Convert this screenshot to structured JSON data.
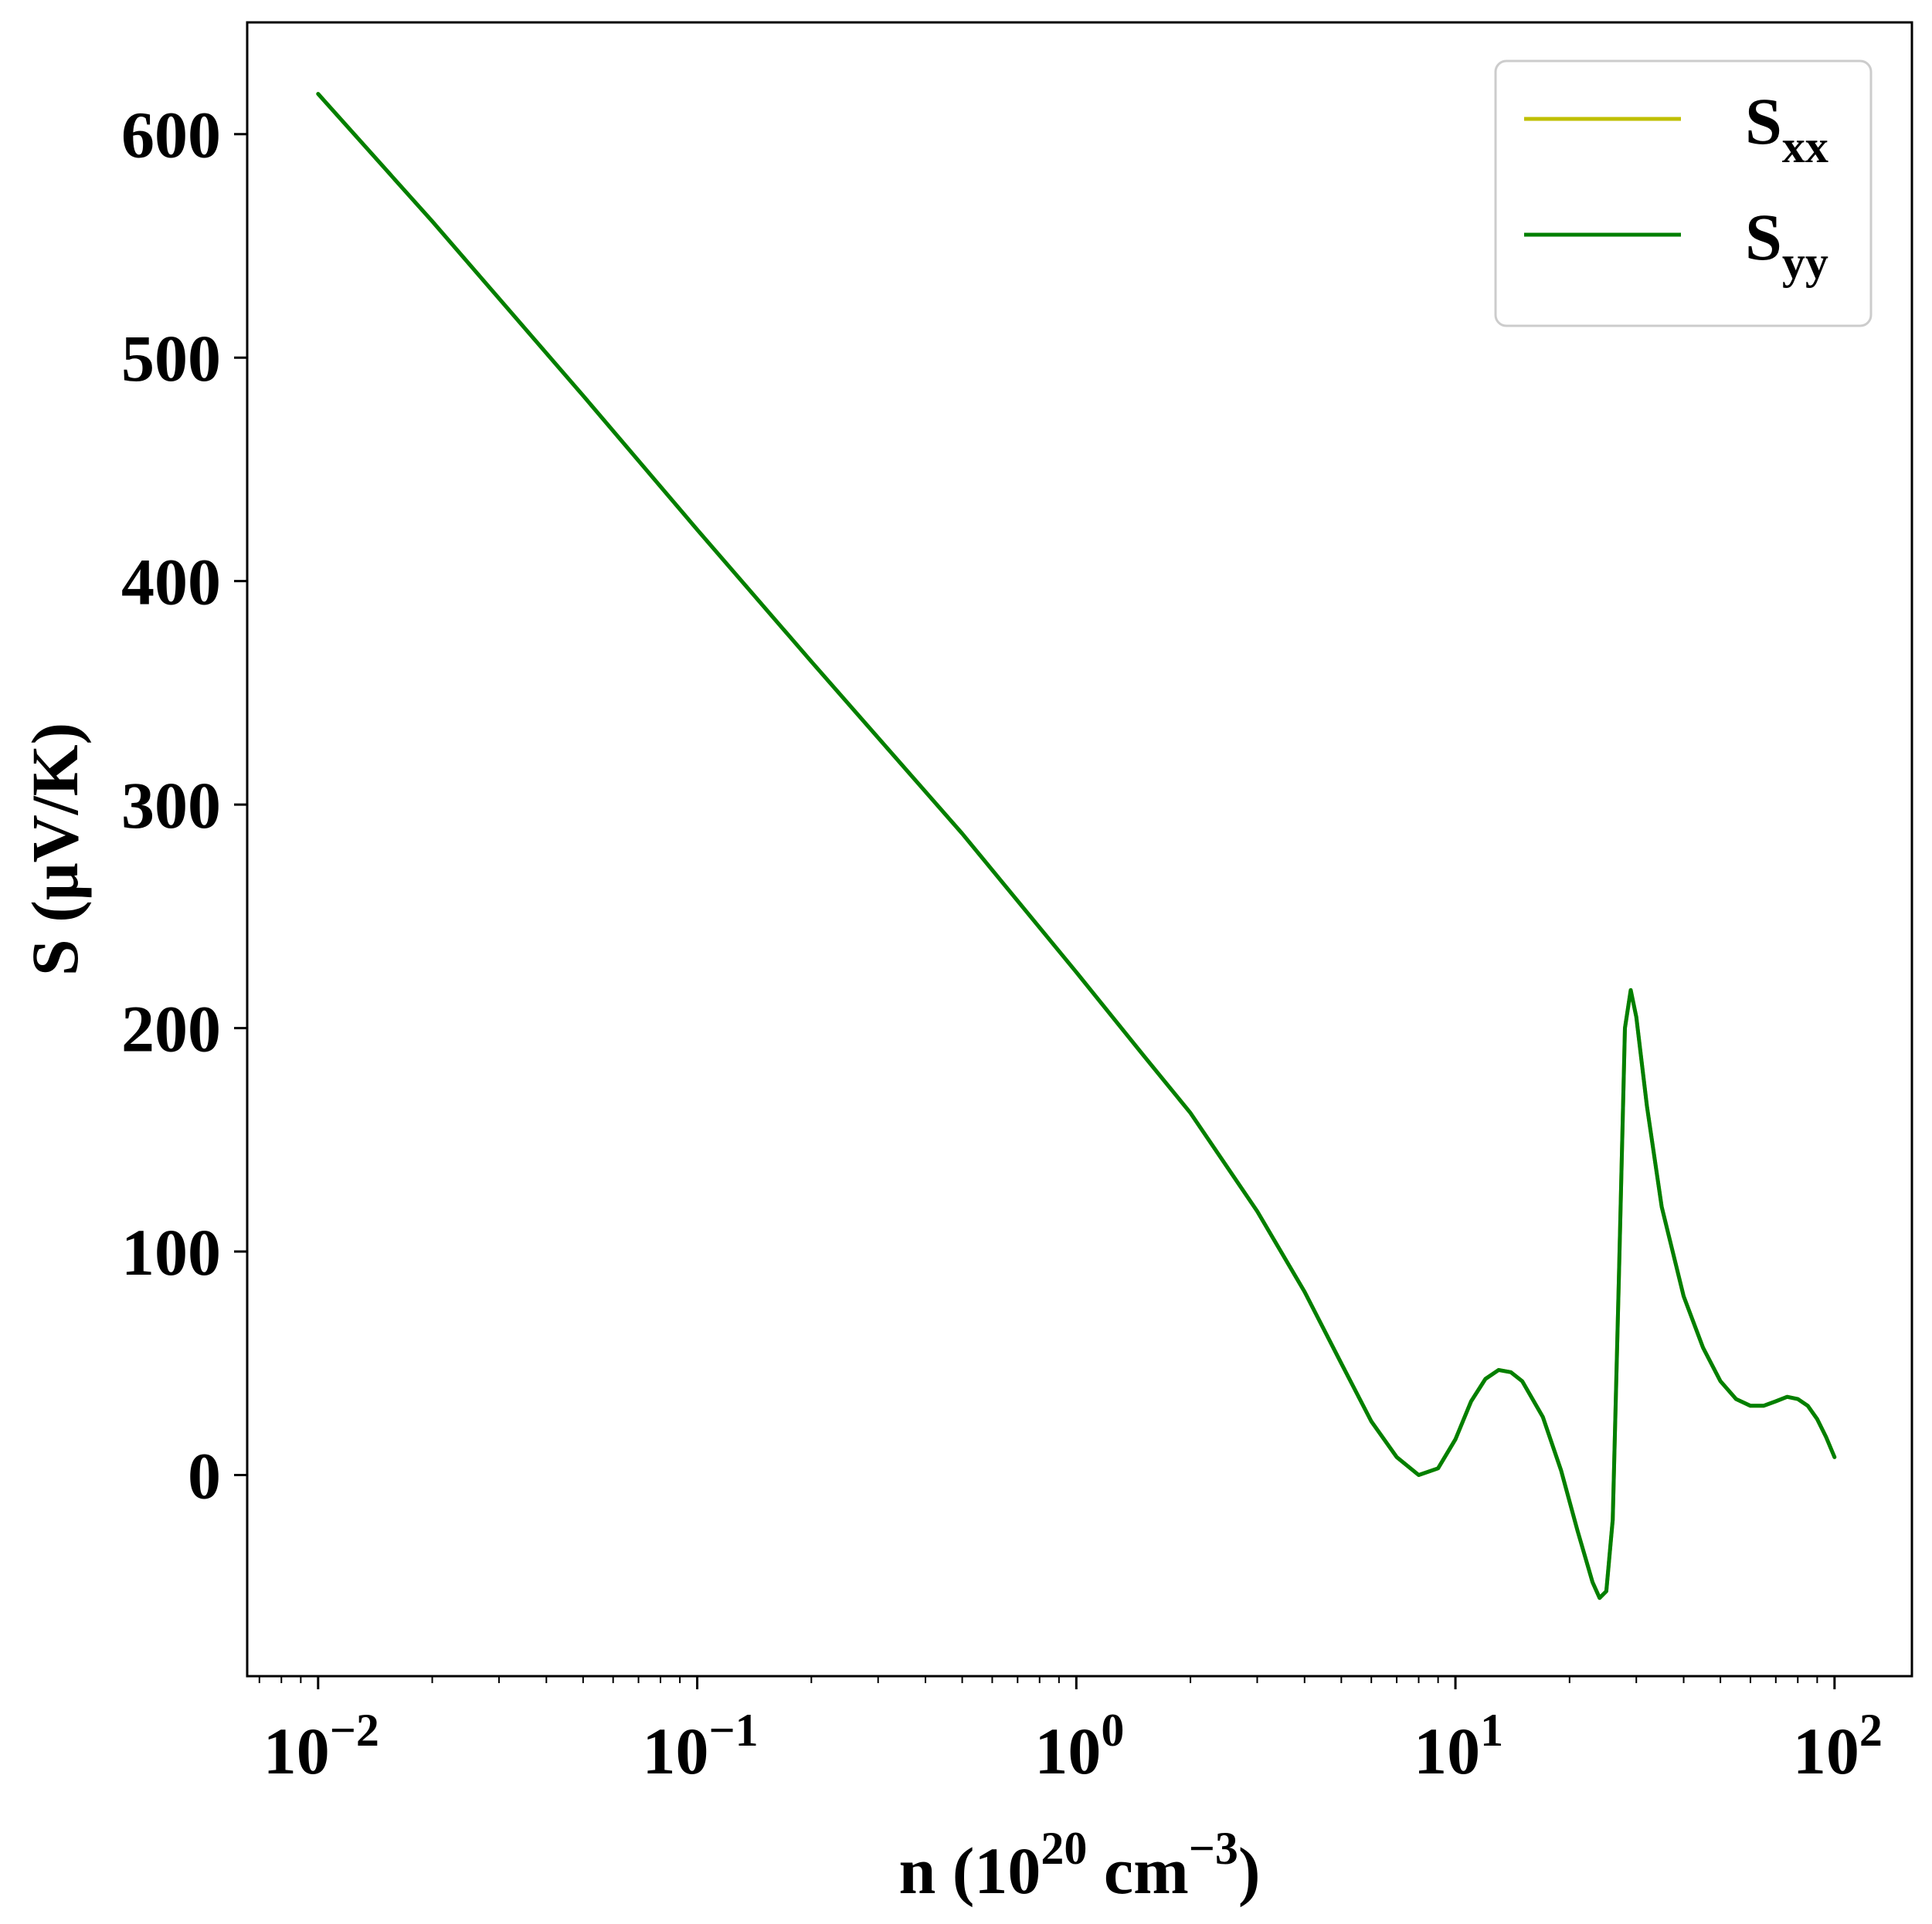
{
  "chart_data": {
    "type": "line",
    "xscale": "log",
    "xlim": [
      0.0065,
      160
    ],
    "ylim": [
      -90,
      650
    ],
    "grid": false,
    "legend_position": "top-right",
    "xlabel": {
      "main": "n (10",
      "sup1": "20",
      "mid": " cm",
      "sup2": "−3",
      "end": ")"
    },
    "ylabel": "S (μV/K)",
    "yticks": [
      0,
      100,
      200,
      300,
      400,
      500,
      600
    ],
    "xticks": [
      {
        "value": 0.01,
        "base": "10",
        "exp": "−2"
      },
      {
        "value": 0.1,
        "base": "10",
        "exp": "−1"
      },
      {
        "value": 1,
        "base": "10",
        "exp": "0"
      },
      {
        "value": 10,
        "base": "10",
        "exp": "1"
      },
      {
        "value": 100,
        "base": "10",
        "exp": "2"
      }
    ],
    "series": [
      {
        "name": "S",
        "name_sub": "xx",
        "color": "#bfbf00",
        "x": [
          0.01,
          0.02,
          0.05,
          0.1,
          0.2,
          0.5,
          1.0,
          1.5,
          2.0,
          3.0,
          4.0,
          5.0,
          6.0,
          7.0,
          8.0,
          9.0,
          10.0,
          11.0,
          12.0,
          13.0,
          14.0,
          15.0,
          17.0,
          19.0,
          21.0,
          23.0,
          24.0,
          25.0,
          26.0,
          27.0,
          28.0,
          29.0,
          30.0,
          32.0,
          35.0,
          40.0,
          45.0,
          50.0,
          55.0,
          60.0,
          65.0,
          70.0,
          75.0,
          80.0,
          85.0,
          90.0,
          95.0,
          100.0
        ],
        "y": [
          618,
          561,
          483,
          423,
          364,
          287,
          225,
          188,
          162,
          118,
          82,
          50,
          24,
          8,
          0,
          3,
          16,
          33,
          43,
          47,
          46,
          42,
          26,
          2,
          -25,
          -48,
          -55,
          -52,
          -20,
          90,
          200,
          217,
          205,
          165,
          120,
          80,
          57,
          42,
          34,
          31,
          31,
          33,
          35,
          34,
          31,
          25,
          17,
          8
        ]
      },
      {
        "name": "S",
        "name_sub": "yy",
        "color": "#007f00",
        "x": [
          0.01,
          0.02,
          0.05,
          0.1,
          0.2,
          0.5,
          1.0,
          1.5,
          2.0,
          3.0,
          4.0,
          5.0,
          6.0,
          7.0,
          8.0,
          9.0,
          10.0,
          11.0,
          12.0,
          13.0,
          14.0,
          15.0,
          17.0,
          19.0,
          21.0,
          23.0,
          24.0,
          25.0,
          26.0,
          27.0,
          28.0,
          29.0,
          30.0,
          32.0,
          35.0,
          40.0,
          45.0,
          50.0,
          55.0,
          60.0,
          65.0,
          70.0,
          75.0,
          80.0,
          85.0,
          90.0,
          95.0,
          100.0
        ],
        "y": [
          618,
          561,
          483,
          423,
          364,
          287,
          225,
          188,
          162,
          118,
          82,
          50,
          24,
          8,
          0,
          3,
          16,
          33,
          43,
          47,
          46,
          42,
          26,
          2,
          -25,
          -48,
          -55,
          -52,
          -20,
          90,
          200,
          217,
          205,
          165,
          120,
          80,
          57,
          42,
          34,
          31,
          31,
          33,
          35,
          34,
          31,
          25,
          17,
          8
        ]
      }
    ]
  }
}
